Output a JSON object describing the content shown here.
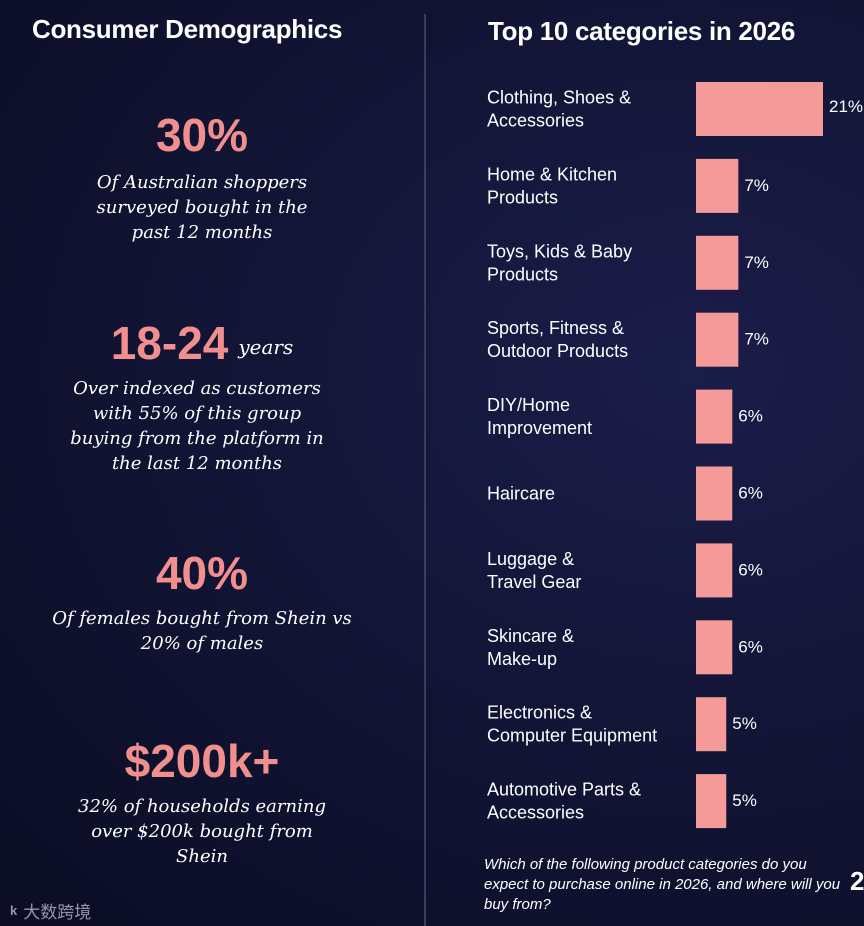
{
  "left_panel": {
    "title": "Consumer Demographics",
    "stats": [
      {
        "value": "30%",
        "description": "Of Australian shoppers surveyed bought in the past 12 months"
      },
      {
        "value": "18-24",
        "unit": "years",
        "description": "Over indexed as customers with 55% of this group buying from the platform in the last 12 months"
      },
      {
        "value": "40%",
        "description": "Of females bought from Shein vs 20% of males"
      },
      {
        "value": "$200k+",
        "description": "32% of households earning over $200k bought from Shein"
      }
    ]
  },
  "right_panel": {
    "title": "Top 10 categories in 2026",
    "footnote": "Which of the following product categories do you expect to purchase online in 2026, and where will you buy from?",
    "page_number": "2"
  },
  "watermark": {
    "logo": "k",
    "text": "大数跨境"
  },
  "colors": {
    "accent": "#f08f8e",
    "bar": "#f49a99",
    "background": "#121536",
    "text": "#ffffff"
  },
  "chart_data": {
    "type": "bar",
    "orientation": "horizontal",
    "title": "Top 10 categories in 2026",
    "categories": [
      [
        "Clothing, Shoes &",
        "Accessories"
      ],
      [
        "Home & Kitchen",
        "Products"
      ],
      [
        "Toys, Kids & Baby",
        "Products"
      ],
      [
        "Sports, Fitness &",
        "Outdoor Products"
      ],
      [
        "DIY/Home",
        "Improvement"
      ],
      [
        "Haircare"
      ],
      [
        "Luggage &",
        "Travel Gear"
      ],
      [
        "Skincare &",
        "Make-up"
      ],
      [
        "Electronics &",
        "Computer Equipment"
      ],
      [
        "Automotive Parts &",
        "Accessories"
      ]
    ],
    "values": [
      21,
      7,
      7,
      7,
      6,
      6,
      6,
      6,
      5,
      5
    ],
    "value_labels": [
      "21%",
      "7%",
      "7%",
      "7%",
      "6%",
      "6%",
      "6%",
      "6%",
      "5%",
      "5%"
    ],
    "xlim": [
      0,
      21
    ],
    "unit": "%"
  }
}
